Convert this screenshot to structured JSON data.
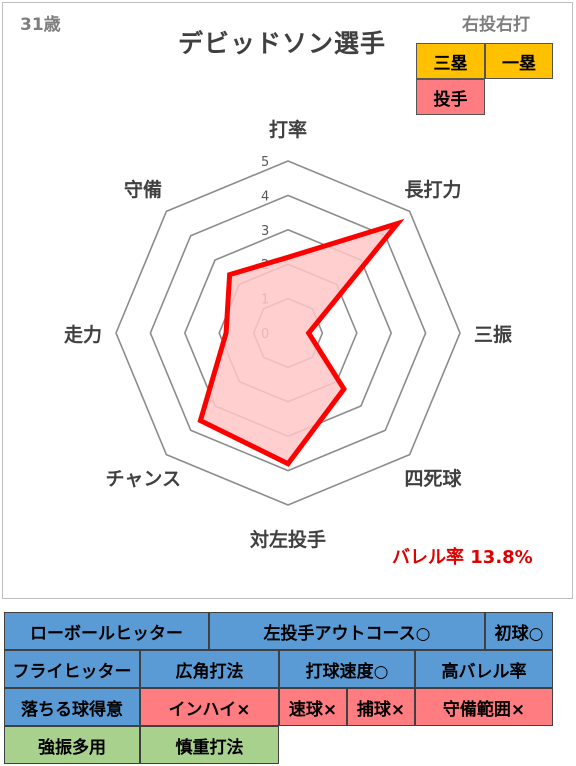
{
  "player": {
    "age": "31歳",
    "name": "デビッドソン選手",
    "throw_bat": "右投右打",
    "positions": [
      {
        "label": "三塁",
        "color": "#ffc000"
      },
      {
        "label": "一塁",
        "color": "#ffc000"
      },
      {
        "label": "投手",
        "color": "#ff7c80"
      }
    ]
  },
  "chart_data": {
    "type": "radar",
    "axes": [
      "打率",
      "長打力",
      "三振",
      "四死球",
      "対左投手",
      "チャンス",
      "走力",
      "守備"
    ],
    "values": [
      2.2,
      4.5,
      0.6,
      2.3,
      3.8,
      3.6,
      1.8,
      2.4
    ],
    "range": [
      0,
      5
    ],
    "ticks": [
      "0",
      "1",
      "2",
      "3",
      "4",
      "5"
    ],
    "grid": true,
    "series_color": "#ff0000",
    "fill_color": "#ffc7c8"
  },
  "barrel_rate": "バレル率 13.8%",
  "tags": [
    {
      "label": "ローボールヒッター",
      "color": "blue"
    },
    {
      "label": "左投手アウトコース○",
      "color": "blue"
    },
    {
      "label": "初球○",
      "color": "blue"
    },
    {
      "label": "フライヒッター",
      "color": "blue"
    },
    {
      "label": "広角打法",
      "color": "blue"
    },
    {
      "label": "打球速度○",
      "color": "blue"
    },
    {
      "label": "高バレル率",
      "color": "blue"
    },
    {
      "label": "落ちる球得意",
      "color": "blue"
    },
    {
      "label": "インハイ×",
      "color": "red"
    },
    {
      "label": "速球×",
      "color": "red"
    },
    {
      "label": "捕球×",
      "color": "red"
    },
    {
      "label": "守備範囲×",
      "color": "red"
    },
    {
      "label": "強振多用",
      "color": "green"
    },
    {
      "label": "慎重打法",
      "color": "green"
    }
  ]
}
